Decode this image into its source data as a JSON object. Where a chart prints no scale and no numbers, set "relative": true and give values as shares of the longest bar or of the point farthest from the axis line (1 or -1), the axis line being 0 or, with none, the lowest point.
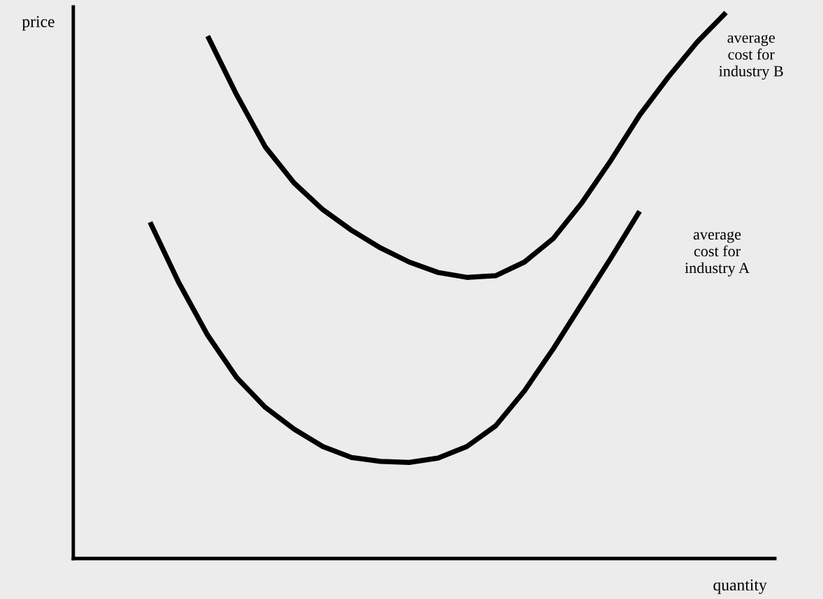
{
  "chart_data": {
    "type": "line",
    "relative": true,
    "xlabel": "quantity",
    "ylabel": "price",
    "grid": false,
    "legend": false,
    "categories": [
      null,
      null,
      null,
      null,
      null,
      null,
      null,
      null,
      null,
      null,
      null,
      null,
      null,
      null,
      null,
      null,
      null,
      null,
      null,
      null,
      null
    ],
    "series": [
      {
        "name": "average\ncost for\nindustry B",
        "color": "#000000",
        "values": [
          null,
          null,
          0.957,
          0.85,
          0.754,
          0.688,
          0.639,
          0.601,
          0.569,
          0.543,
          0.524,
          0.515,
          0.518,
          0.543,
          0.586,
          0.652,
          0.729,
          0.812,
          0.882,
          0.946,
          1.0
        ]
      },
      {
        "name": "average\ncost for\nindustry A",
        "color": "#000000",
        "values": [
          0.616,
          0.505,
          0.409,
          0.332,
          0.277,
          0.237,
          0.205,
          0.185,
          0.178,
          0.176,
          0.184,
          0.205,
          0.243,
          0.307,
          0.384,
          0.467,
          0.55,
          0.636,
          null,
          null,
          null
        ]
      }
    ]
  }
}
